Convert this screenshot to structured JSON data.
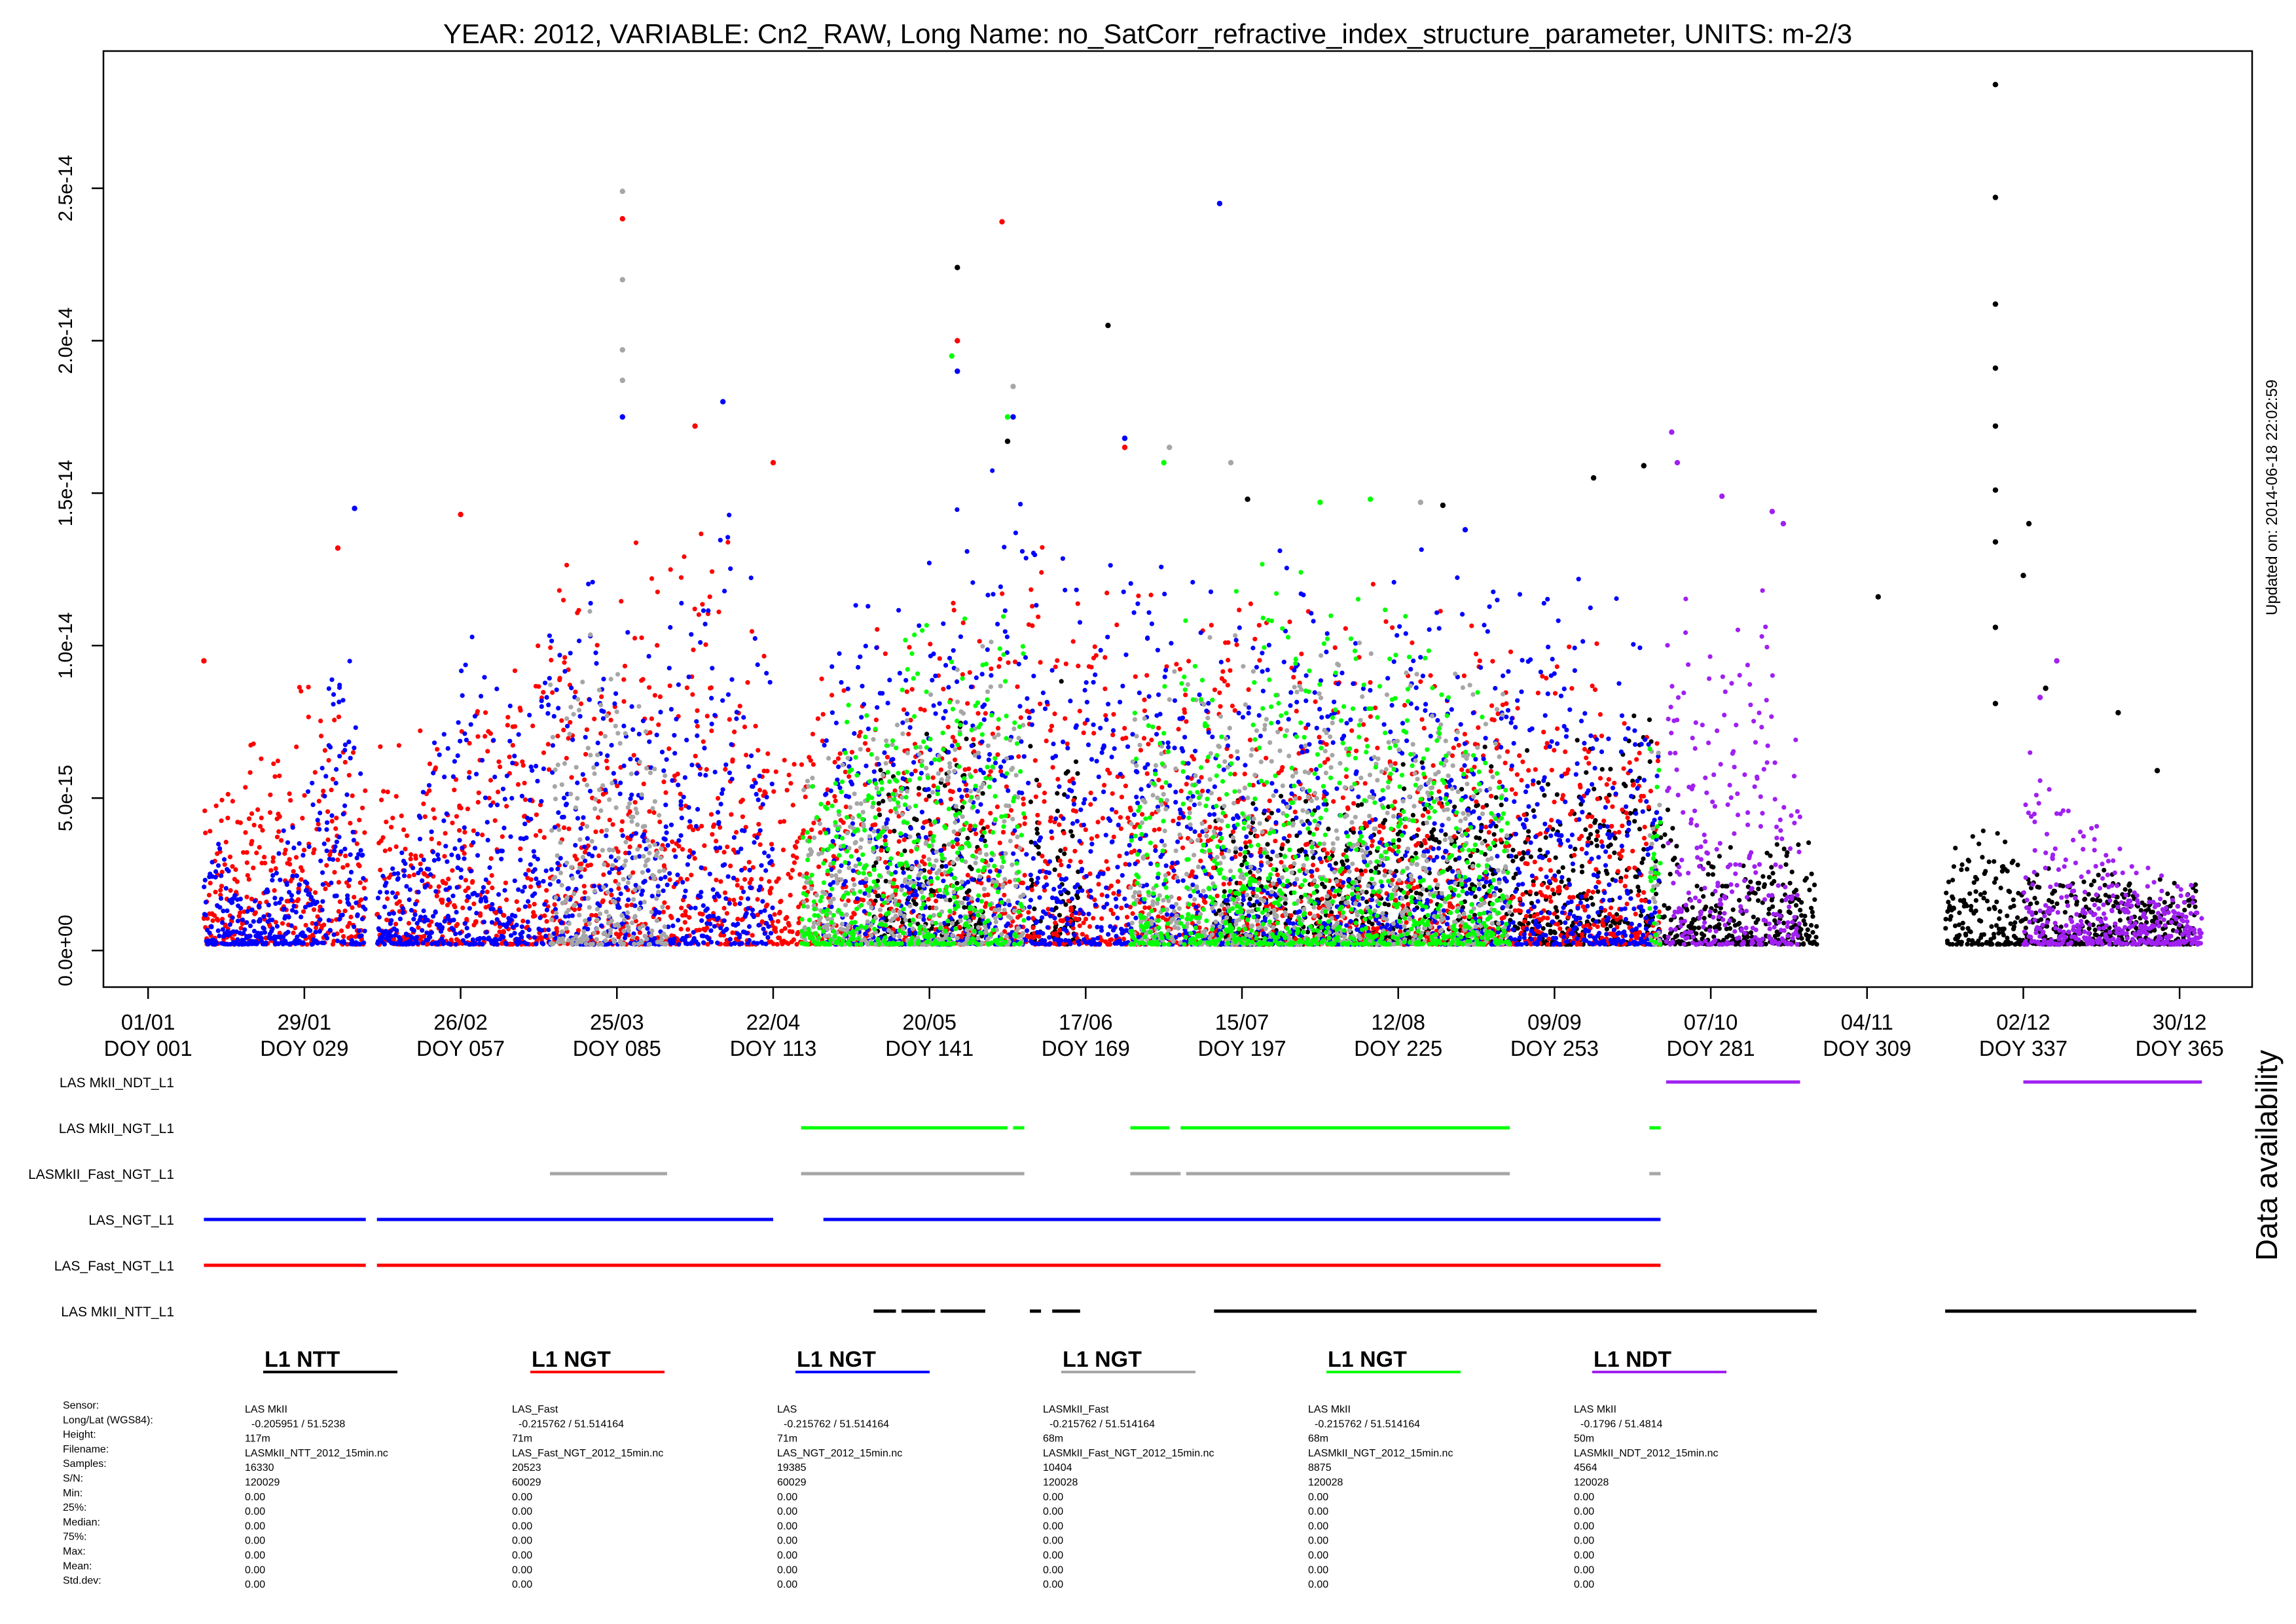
{
  "chart_data": {
    "type": "scatter",
    "title": "YEAR: 2012, VARIABLE: Cn2_RAW, Long Name: no_SatCorr_refractive_index_structure_parameter, UNITS: m-2/3",
    "updated": "Updated on: 2014-06-18 22:02:59",
    "ylabel": "",
    "xlabel": "",
    "y_ticks": [
      "0.0e+00",
      "5.0e-15",
      "1.0e-14",
      "1.5e-14",
      "2.0e-14",
      "2.5e-14"
    ],
    "y_tick_values": [
      0,
      5e-15,
      1e-14,
      1.5e-14,
      2e-14,
      2.5e-14
    ],
    "ylim": [
      -1.2e-15,
      2.95e-14
    ],
    "xlim": [
      -7,
      378
    ],
    "x_ticks": [
      {
        "doy": 1,
        "date": "01/01",
        "label": "DOY 001"
      },
      {
        "doy": 29,
        "date": "29/01",
        "label": "DOY 029"
      },
      {
        "doy": 57,
        "date": "26/02",
        "label": "DOY 057"
      },
      {
        "doy": 85,
        "date": "25/03",
        "label": "DOY 085"
      },
      {
        "doy": 113,
        "date": "22/04",
        "label": "DOY 113"
      },
      {
        "doy": 141,
        "date": "20/05",
        "label": "DOY 141"
      },
      {
        "doy": 169,
        "date": "17/06",
        "label": "DOY 169"
      },
      {
        "doy": 197,
        "date": "15/07",
        "label": "DOY 197"
      },
      {
        "doy": 225,
        "date": "12/08",
        "label": "DOY 225"
      },
      {
        "doy": 253,
        "date": "09/09",
        "label": "DOY 253"
      },
      {
        "doy": 281,
        "date": "07/10",
        "label": "DOY 281"
      },
      {
        "doy": 309,
        "date": "04/11",
        "label": "DOY 309"
      },
      {
        "doy": 337,
        "date": "02/12",
        "label": "DOY 337"
      },
      {
        "doy": 365,
        "date": "30/12",
        "label": "DOY 365"
      }
    ],
    "series": [
      {
        "name": "LAS MkII_NTT_L1",
        "color": "#000000",
        "envelope": [
          [
            146,
            7e-15
          ],
          [
            158,
            8e-15
          ],
          [
            170,
            9e-15
          ],
          [
            180,
            6e-15
          ],
          [
            200,
            5e-15
          ],
          [
            230,
            6e-15
          ],
          [
            255,
            6e-15
          ],
          [
            270,
            8e-15
          ],
          [
            276,
            3e-15
          ],
          [
            306,
            4e-15
          ],
          [
            320,
            3e-15
          ],
          [
            334,
            4e-15
          ],
          [
            338,
            2.5e-15
          ],
          [
            372,
            2e-15
          ]
        ],
        "peaks": [
          [
            146,
            2.24e-14
          ],
          [
            155,
            1.67e-14
          ],
          [
            173,
            2.05e-14
          ],
          [
            198,
            1.48e-14
          ],
          [
            233,
            1.46e-14
          ],
          [
            260,
            1.55e-14
          ],
          [
            269,
            1.59e-14
          ],
          [
            311,
            1.16e-14
          ],
          [
            332,
            2.84e-14
          ],
          [
            332,
            2.47e-14
          ],
          [
            332,
            2.12e-14
          ],
          [
            332,
            1.91e-14
          ],
          [
            332,
            1.72e-14
          ],
          [
            332,
            1.51e-14
          ],
          [
            332,
            1.34e-14
          ],
          [
            332,
            1.06e-14
          ],
          [
            332,
            8.1e-15
          ],
          [
            338,
            1.4e-14
          ],
          [
            337,
            1.23e-14
          ],
          [
            341,
            8.6e-15
          ],
          [
            354,
            7.8e-15
          ],
          [
            361,
            5.9e-15
          ]
        ]
      },
      {
        "name": "LAS_Fast_NGT_L1",
        "color": "#ff0000",
        "envelope": [
          [
            11,
            5e-15
          ],
          [
            30,
            9e-15
          ],
          [
            45,
            6e-15
          ],
          [
            60,
            9e-15
          ],
          [
            75,
            1.2e-14
          ],
          [
            90,
            1.3e-14
          ],
          [
            105,
            1.3e-14
          ],
          [
            113,
            8e-15
          ],
          [
            118,
            7e-15
          ],
          [
            130,
            1.1e-14
          ],
          [
            146,
            1.2e-14
          ],
          [
            160,
            1.2e-14
          ],
          [
            175,
            1.1e-14
          ],
          [
            200,
            1.1e-14
          ],
          [
            230,
            1.1e-14
          ],
          [
            260,
            1e-14
          ],
          [
            271,
            7e-15
          ]
        ],
        "peaks": [
          [
            11,
            9.5e-15
          ],
          [
            86,
            2.4e-14
          ],
          [
            154,
            2.39e-14
          ],
          [
            146,
            2e-14
          ],
          [
            113,
            1.6e-14
          ],
          [
            35,
            1.32e-14
          ],
          [
            57,
            1.43e-14
          ],
          [
            99,
            1.72e-14
          ],
          [
            176,
            1.65e-14
          ]
        ]
      },
      {
        "name": "LAS_NGT_L1",
        "color": "#0000ff",
        "envelope": [
          [
            11,
            6.5e-15
          ],
          [
            18,
            1.2e-15
          ],
          [
            22,
            2.2e-15
          ],
          [
            30,
            6e-15
          ],
          [
            34,
            1.1e-14
          ],
          [
            37,
            1.2e-14
          ],
          [
            40,
            2e-15
          ],
          [
            50,
            5e-15
          ],
          [
            57,
            1e-14
          ],
          [
            65,
            8e-15
          ],
          [
            75,
            1.2e-14
          ],
          [
            85,
            1.2e-14
          ],
          [
            90,
            1e-14
          ],
          [
            98,
            1.3e-14
          ],
          [
            105,
            1.3e-14
          ],
          [
            110,
            1.1e-14
          ],
          [
            113,
            1e-14
          ],
          [
            122,
            1.2e-14
          ],
          [
            135,
            1.2e-14
          ],
          [
            146,
            1.4e-14
          ],
          [
            155,
            1.5e-14
          ],
          [
            165,
            1.3e-14
          ],
          [
            175,
            1.4e-14
          ],
          [
            185,
            1.2e-14
          ],
          [
            195,
            1.1e-14
          ],
          [
            205,
            1.2e-14
          ],
          [
            215,
            1.2e-14
          ],
          [
            230,
            1.2e-14
          ],
          [
            245,
            1.2e-14
          ],
          [
            260,
            1.2e-14
          ],
          [
            271,
            1e-14
          ]
        ],
        "peaks": [
          [
            193,
            2.45e-14
          ],
          [
            146,
            1.9e-14
          ],
          [
            86,
            1.75e-14
          ],
          [
            104,
            1.8e-14
          ],
          [
            38,
            1.45e-14
          ],
          [
            156,
            1.75e-14
          ],
          [
            176,
            1.68e-14
          ],
          [
            237,
            1.38e-14
          ]
        ]
      },
      {
        "name": "LASMkII_Fast_NGT_L1",
        "color": "#a6a6a6",
        "envelope": [
          [
            74,
            9e-15
          ],
          [
            80,
            1.1e-14
          ],
          [
            86,
            9e-15
          ],
          [
            90,
            7e-15
          ],
          [
            95,
            5e-15
          ],
          [
            122,
            6e-15
          ],
          [
            150,
            1e-14
          ],
          [
            164,
            8e-15
          ],
          [
            178,
            8e-15
          ],
          [
            198,
            1e-14
          ],
          [
            225,
            1e-14
          ],
          [
            250,
            8e-15
          ],
          [
            269,
            6e-15
          ]
        ],
        "peaks": [
          [
            86,
            2.49e-14
          ],
          [
            86,
            2.2e-14
          ],
          [
            86,
            1.97e-14
          ],
          [
            86,
            1.87e-14
          ],
          [
            156,
            1.85e-14
          ],
          [
            184,
            1.65e-14
          ],
          [
            195,
            1.6e-14
          ],
          [
            229,
            1.47e-14
          ]
        ]
      },
      {
        "name": "LAS MkII_NGT_L1",
        "color": "#00ff00",
        "envelope": [
          [
            118,
            4e-15
          ],
          [
            130,
            9e-15
          ],
          [
            142,
            1.2e-14
          ],
          [
            150,
            1.2e-14
          ],
          [
            158,
            1.3e-14
          ],
          [
            165,
            8e-15
          ],
          [
            180,
            9e-15
          ],
          [
            200,
            1.2e-14
          ],
          [
            210,
            1.2e-14
          ],
          [
            220,
            1.1e-14
          ],
          [
            230,
            1e-14
          ],
          [
            245,
            7e-15
          ]
        ],
        "peaks": [
          [
            145,
            1.95e-14
          ],
          [
            155,
            1.75e-14
          ],
          [
            183,
            1.6e-14
          ],
          [
            211,
            1.47e-14
          ],
          [
            220,
            1.48e-14
          ]
        ]
      },
      {
        "name": "LAS MkII_NDT_L1",
        "color": "#a020f0",
        "envelope": [
          [
            273,
            1.3e-14
          ],
          [
            280,
            9e-15
          ],
          [
            290,
            1.1e-14
          ],
          [
            296,
            8e-15
          ],
          [
            338,
            6e-15
          ],
          [
            345,
            5e-15
          ],
          [
            355,
            3e-15
          ],
          [
            368,
            2e-15
          ]
        ],
        "peaks": [
          [
            274,
            1.7e-14
          ],
          [
            275,
            1.6e-14
          ],
          [
            283,
            1.49e-14
          ],
          [
            292,
            1.44e-14
          ],
          [
            294,
            1.4e-14
          ],
          [
            343,
            9.5e-15
          ],
          [
            340,
            8.3e-15
          ]
        ]
      }
    ],
    "availability": {
      "title": "Data availability",
      "rows": [
        {
          "name": "LAS MkII_NDT_L1",
          "color": "#a020f0",
          "segments": [
            [
              273,
              297
            ],
            [
              337,
              369
            ]
          ]
        },
        {
          "name": "LAS MkII_NGT_L1",
          "color": "#00ff00",
          "segments": [
            [
              118,
              155
            ],
            [
              156,
              158
            ],
            [
              177,
              184
            ],
            [
              186,
              212
            ],
            [
              212,
              245
            ],
            [
              270,
              272
            ]
          ]
        },
        {
          "name": "LASMkII_Fast_NGT_L1",
          "color": "#a6a6a6",
          "segments": [
            [
              73,
              94
            ],
            [
              118,
              158
            ],
            [
              177,
              186
            ],
            [
              187,
              245
            ],
            [
              270,
              272
            ]
          ]
        },
        {
          "name": "LAS_NGT_L1",
          "color": "#0000ff",
          "segments": [
            [
              11,
              40
            ],
            [
              42,
              113
            ],
            [
              122,
              272
            ]
          ]
        },
        {
          "name": "LAS_Fast_NGT_L1",
          "color": "#ff0000",
          "segments": [
            [
              11,
              40
            ],
            [
              42,
              272
            ]
          ]
        },
        {
          "name": "LAS MkII_NTT_L1",
          "color": "#000000",
          "segments": [
            [
              131,
              135
            ],
            [
              136,
              142
            ],
            [
              143,
              151
            ],
            [
              159,
              161
            ],
            [
              163,
              168
            ],
            [
              192,
              300
            ],
            [
              323,
              368
            ]
          ]
        }
      ]
    }
  },
  "info": {
    "labels": [
      "Sensor:",
      "Long/Lat (WGS84):",
      "Height:",
      "Filename:",
      "Samples:",
      "S/N:",
      "Min:",
      "25%:",
      "Median:",
      "75%:",
      "Max:",
      "Mean:",
      "Std.dev:"
    ],
    "columns": [
      {
        "title": "L1 NTT",
        "color": "#000000",
        "values": [
          "LAS MkII",
          "-0.205951 / 51.5238",
          "117m",
          "LASMkII_NTT_2012_15min.nc",
          "16330",
          "120029",
          "0.00",
          "0.00",
          "0.00",
          "0.00",
          "0.00",
          "0.00",
          "0.00"
        ]
      },
      {
        "title": "L1 NGT",
        "color": "#ff0000",
        "values": [
          "LAS_Fast",
          "-0.215762 / 51.514164",
          "71m",
          "LAS_Fast_NGT_2012_15min.nc",
          "20523",
          "60029",
          "0.00",
          "0.00",
          "0.00",
          "0.00",
          "0.00",
          "0.00",
          "0.00"
        ]
      },
      {
        "title": "L1 NGT",
        "color": "#0000ff",
        "values": [
          "LAS",
          "-0.215762 / 51.514164",
          "71m",
          "LAS_NGT_2012_15min.nc",
          "19385",
          "60029",
          "0.00",
          "0.00",
          "0.00",
          "0.00",
          "0.00",
          "0.00",
          "0.00"
        ]
      },
      {
        "title": "L1 NGT",
        "color": "#a6a6a6",
        "values": [
          "LASMkII_Fast",
          "-0.215762 / 51.514164",
          "68m",
          "LASMkII_Fast_NGT_2012_15min.nc",
          "10404",
          "120028",
          "0.00",
          "0.00",
          "0.00",
          "0.00",
          "0.00",
          "0.00",
          "0.00"
        ]
      },
      {
        "title": "L1 NGT",
        "color": "#00ff00",
        "values": [
          "LAS MkII",
          "-0.215762 / 51.514164",
          "68m",
          "LASMkII_NGT_2012_15min.nc",
          "8875",
          "120028",
          "0.00",
          "0.00",
          "0.00",
          "0.00",
          "0.00",
          "0.00",
          "0.00"
        ]
      },
      {
        "title": "L1 NDT",
        "color": "#a020f0",
        "values": [
          "LAS MkII",
          "-0.1796 / 51.4814",
          "50m",
          "LASMkII_NDT_2012_15min.nc",
          "4564",
          "120028",
          "0.00",
          "0.00",
          "0.00",
          "0.00",
          "0.00",
          "0.00",
          "0.00"
        ]
      }
    ]
  }
}
